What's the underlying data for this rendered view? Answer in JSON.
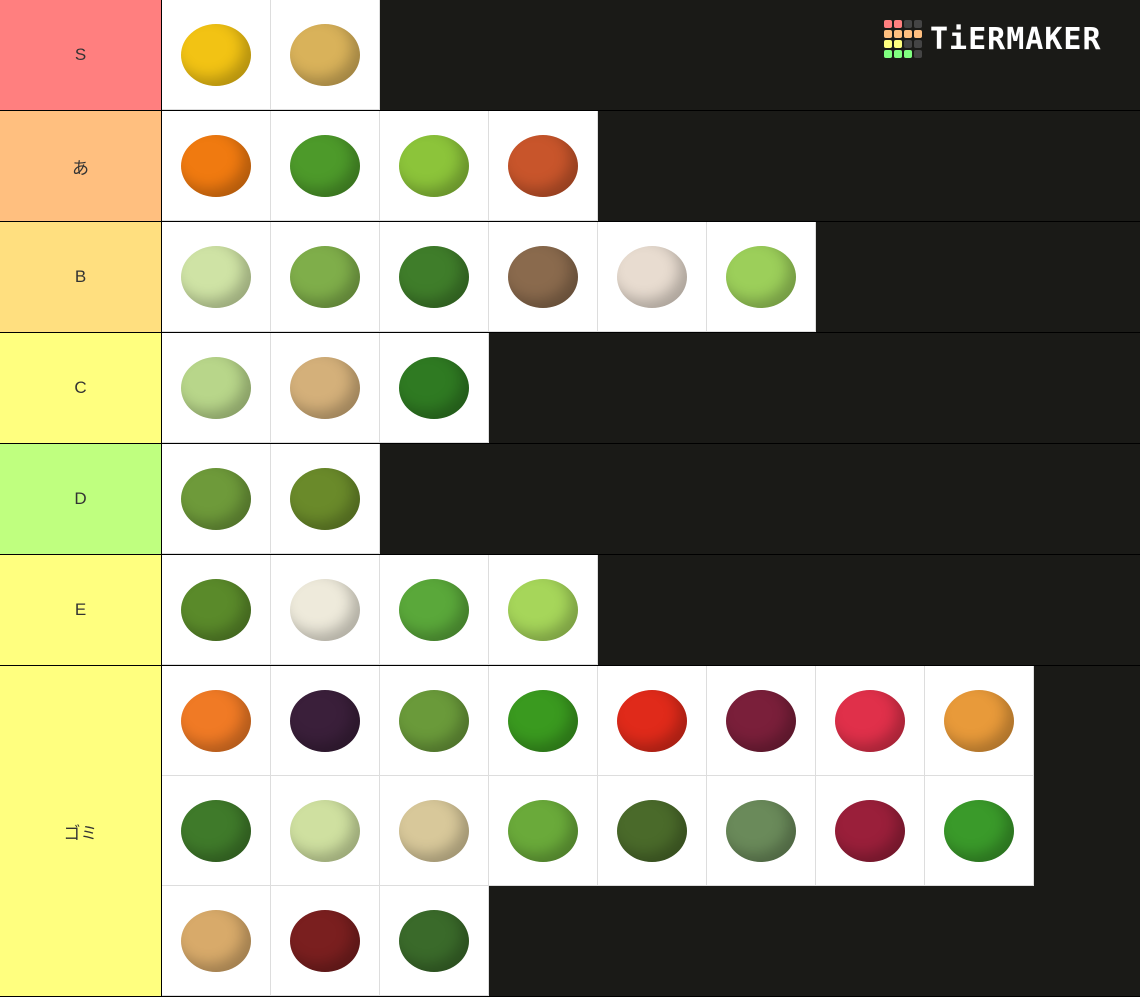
{
  "logo": {
    "text": "TiERMAKER",
    "grid_colors": [
      "#ff7f7f",
      "#ff7f7f",
      "#444",
      "#444",
      "#ffbf7f",
      "#ffbf7f",
      "#ffbf7f",
      "#ffbf7f",
      "#ffff7f",
      "#ffff7f",
      "#444",
      "#444",
      "#7fff7f",
      "#7fff7f",
      "#7fff7f",
      "#444"
    ]
  },
  "colors": {
    "background": "#1a1a17"
  },
  "tiers": [
    {
      "label": "S",
      "color": "#ff7f7f",
      "items": [
        {
          "icon": "corn-icon",
          "color": "#f2c314"
        },
        {
          "icon": "potato-icon",
          "color": "#d9b25a"
        }
      ]
    },
    {
      "label": "あ",
      "color": "#ffbf7f",
      "items": [
        {
          "icon": "pumpkin-icon",
          "color": "#f07a10"
        },
        {
          "icon": "cucumber-icon",
          "color": "#4d9a2a"
        },
        {
          "icon": "edamame-icon",
          "color": "#8cc43a"
        },
        {
          "icon": "sweet-potato-icon",
          "color": "#c8552b"
        }
      ]
    },
    {
      "label": "B",
      "color": "#ffdf7f",
      "items": [
        {
          "icon": "cabbage-icon",
          "color": "#cfe3a5"
        },
        {
          "icon": "brussels-sprouts-icon",
          "color": "#7fae4a"
        },
        {
          "icon": "broccoli-icon",
          "color": "#3f7d2a"
        },
        {
          "icon": "mushroom-icon",
          "color": "#8a6a4d"
        },
        {
          "icon": "garlic-icon",
          "color": "#e8dcd0"
        },
        {
          "icon": "lettuce-icon",
          "color": "#9ccf5a"
        }
      ]
    },
    {
      "label": "C",
      "color": "#ffff7f",
      "items": [
        {
          "icon": "leek-icon",
          "color": "#b8d68a"
        },
        {
          "icon": "ginger-icon",
          "color": "#d4b07a"
        },
        {
          "icon": "spinach-icon",
          "color": "#2f7a22"
        }
      ]
    },
    {
      "label": "D",
      "color": "#bfff7f",
      "items": [
        {
          "icon": "asparagus-icon",
          "color": "#6e9a3a"
        },
        {
          "icon": "avocado-icon",
          "color": "#6a8a2a"
        }
      ]
    },
    {
      "label": "E",
      "color": "#ffff7f",
      "items": [
        {
          "icon": "green-beans-icon",
          "color": "#5a8a2a"
        },
        {
          "icon": "cauliflower-icon",
          "color": "#eeeadb"
        },
        {
          "icon": "bok-choy-icon",
          "color": "#5aa83a"
        },
        {
          "icon": "celery-icon",
          "color": "#a6d65a"
        }
      ]
    },
    {
      "label": "ゴミ",
      "color": "#ffff7f",
      "items": [
        {
          "icon": "carrot-icon",
          "color": "#f07a25"
        },
        {
          "icon": "eggplant-icon",
          "color": "#3a1f3a"
        },
        {
          "icon": "bitter-melon-icon",
          "color": "#6a9a3a"
        },
        {
          "icon": "green-pepper-icon",
          "color": "#3a9a1f"
        },
        {
          "icon": "tomato-icon",
          "color": "#e02a1a"
        },
        {
          "icon": "beet-icon",
          "color": "#7a1f3a"
        },
        {
          "icon": "radish-icon",
          "color": "#e0304a"
        },
        {
          "icon": "butternut-squash-icon",
          "color": "#e89a3a"
        },
        {
          "icon": "kale-icon",
          "color": "#3f7a2a"
        },
        {
          "icon": "fennel-icon",
          "color": "#cfe0a0"
        },
        {
          "icon": "bamboo-shoot-icon",
          "color": "#d8c89a"
        },
        {
          "icon": "green-onion-icon",
          "color": "#6aaa3a"
        },
        {
          "icon": "capers-icon",
          "color": "#4a6a2a"
        },
        {
          "icon": "artichoke-icon",
          "color": "#6a8a5a"
        },
        {
          "icon": "red-onion-icon",
          "color": "#9a1f3a"
        },
        {
          "icon": "green-peas-icon",
          "color": "#3a9a2a"
        },
        {
          "icon": "chickpeas-icon",
          "color": "#d8aa6a"
        },
        {
          "icon": "kidney-beans-icon",
          "color": "#7a1f1f"
        },
        {
          "icon": "zucchini-icon",
          "color": "#3a6a2a"
        }
      ]
    }
  ]
}
